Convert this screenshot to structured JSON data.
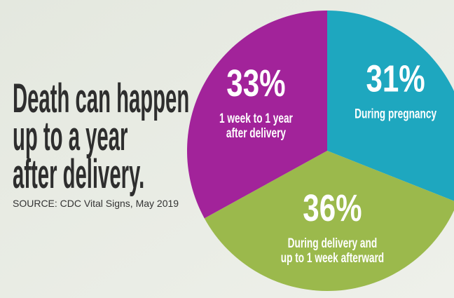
{
  "chart_data": {
    "type": "pie",
    "title": [
      "Death can happen",
      "up to a year",
      "after delivery."
    ],
    "source": "SOURCE: CDC Vital Signs, May 2019",
    "categories": [
      [
        "During pregnancy"
      ],
      [
        "During delivery and",
        "up to 1 week afterward"
      ],
      [
        "1 week to 1 year",
        "after delivery"
      ]
    ],
    "values": [
      31,
      36,
      33
    ],
    "value_labels": [
      "31%",
      "36%",
      "33%"
    ],
    "colors": [
      "#1ea7bf",
      "#9bb94c",
      "#a2239a"
    ]
  }
}
